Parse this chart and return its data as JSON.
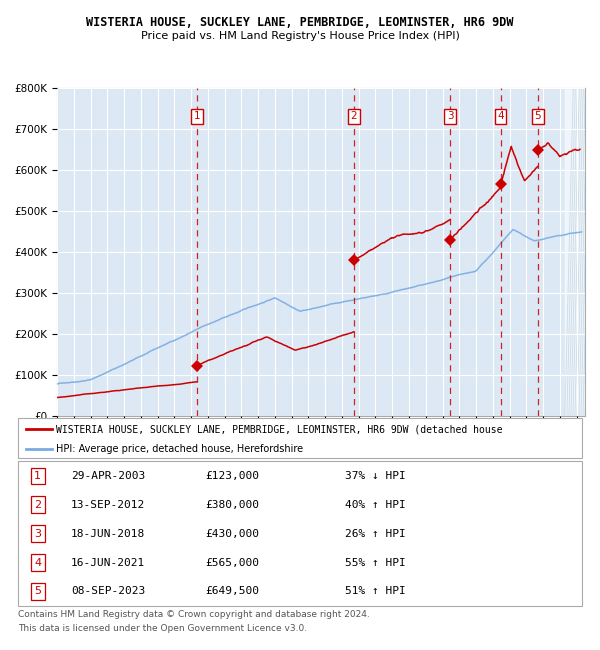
{
  "title": "WISTERIA HOUSE, SUCKLEY LANE, PEMBRIDGE, LEOMINSTER, HR6 9DW",
  "subtitle": "Price paid vs. HM Land Registry's House Price Index (HPI)",
  "ylim": [
    0,
    800000
  ],
  "xlim_start": 1995.0,
  "xlim_end": 2026.5,
  "background_color": "#dce9f5",
  "hatch_color": "#b8cfe0",
  "grid_color": "#ffffff",
  "sale_dates_x": [
    2003.33,
    2012.71,
    2018.46,
    2021.46,
    2023.69
  ],
  "sale_prices": [
    123000,
    380000,
    430000,
    565000,
    649500
  ],
  "sale_labels": [
    "1",
    "2",
    "3",
    "4",
    "5"
  ],
  "legend_line1": "WISTERIA HOUSE, SUCKLEY LANE, PEMBRIDGE, LEOMINSTER, HR6 9DW (detached house",
  "legend_line2": "HPI: Average price, detached house, Herefordshire",
  "red_line_color": "#cc0000",
  "blue_line_color": "#7aabe0",
  "table_entries": [
    {
      "num": "1",
      "date": "29-APR-2003",
      "price": "£123,000",
      "hpi": "37% ↓ HPI"
    },
    {
      "num": "2",
      "date": "13-SEP-2012",
      "price": "£380,000",
      "hpi": "40% ↑ HPI"
    },
    {
      "num": "3",
      "date": "18-JUN-2018",
      "price": "£430,000",
      "hpi": "26% ↑ HPI"
    },
    {
      "num": "4",
      "date": "16-JUN-2021",
      "price": "£565,000",
      "hpi": "55% ↑ HPI"
    },
    {
      "num": "5",
      "date": "08-SEP-2023",
      "price": "£649,500",
      "hpi": "51% ↑ HPI"
    }
  ],
  "footer1": "Contains HM Land Registry data © Crown copyright and database right 2024.",
  "footer2": "This data is licensed under the Open Government Licence v3.0."
}
